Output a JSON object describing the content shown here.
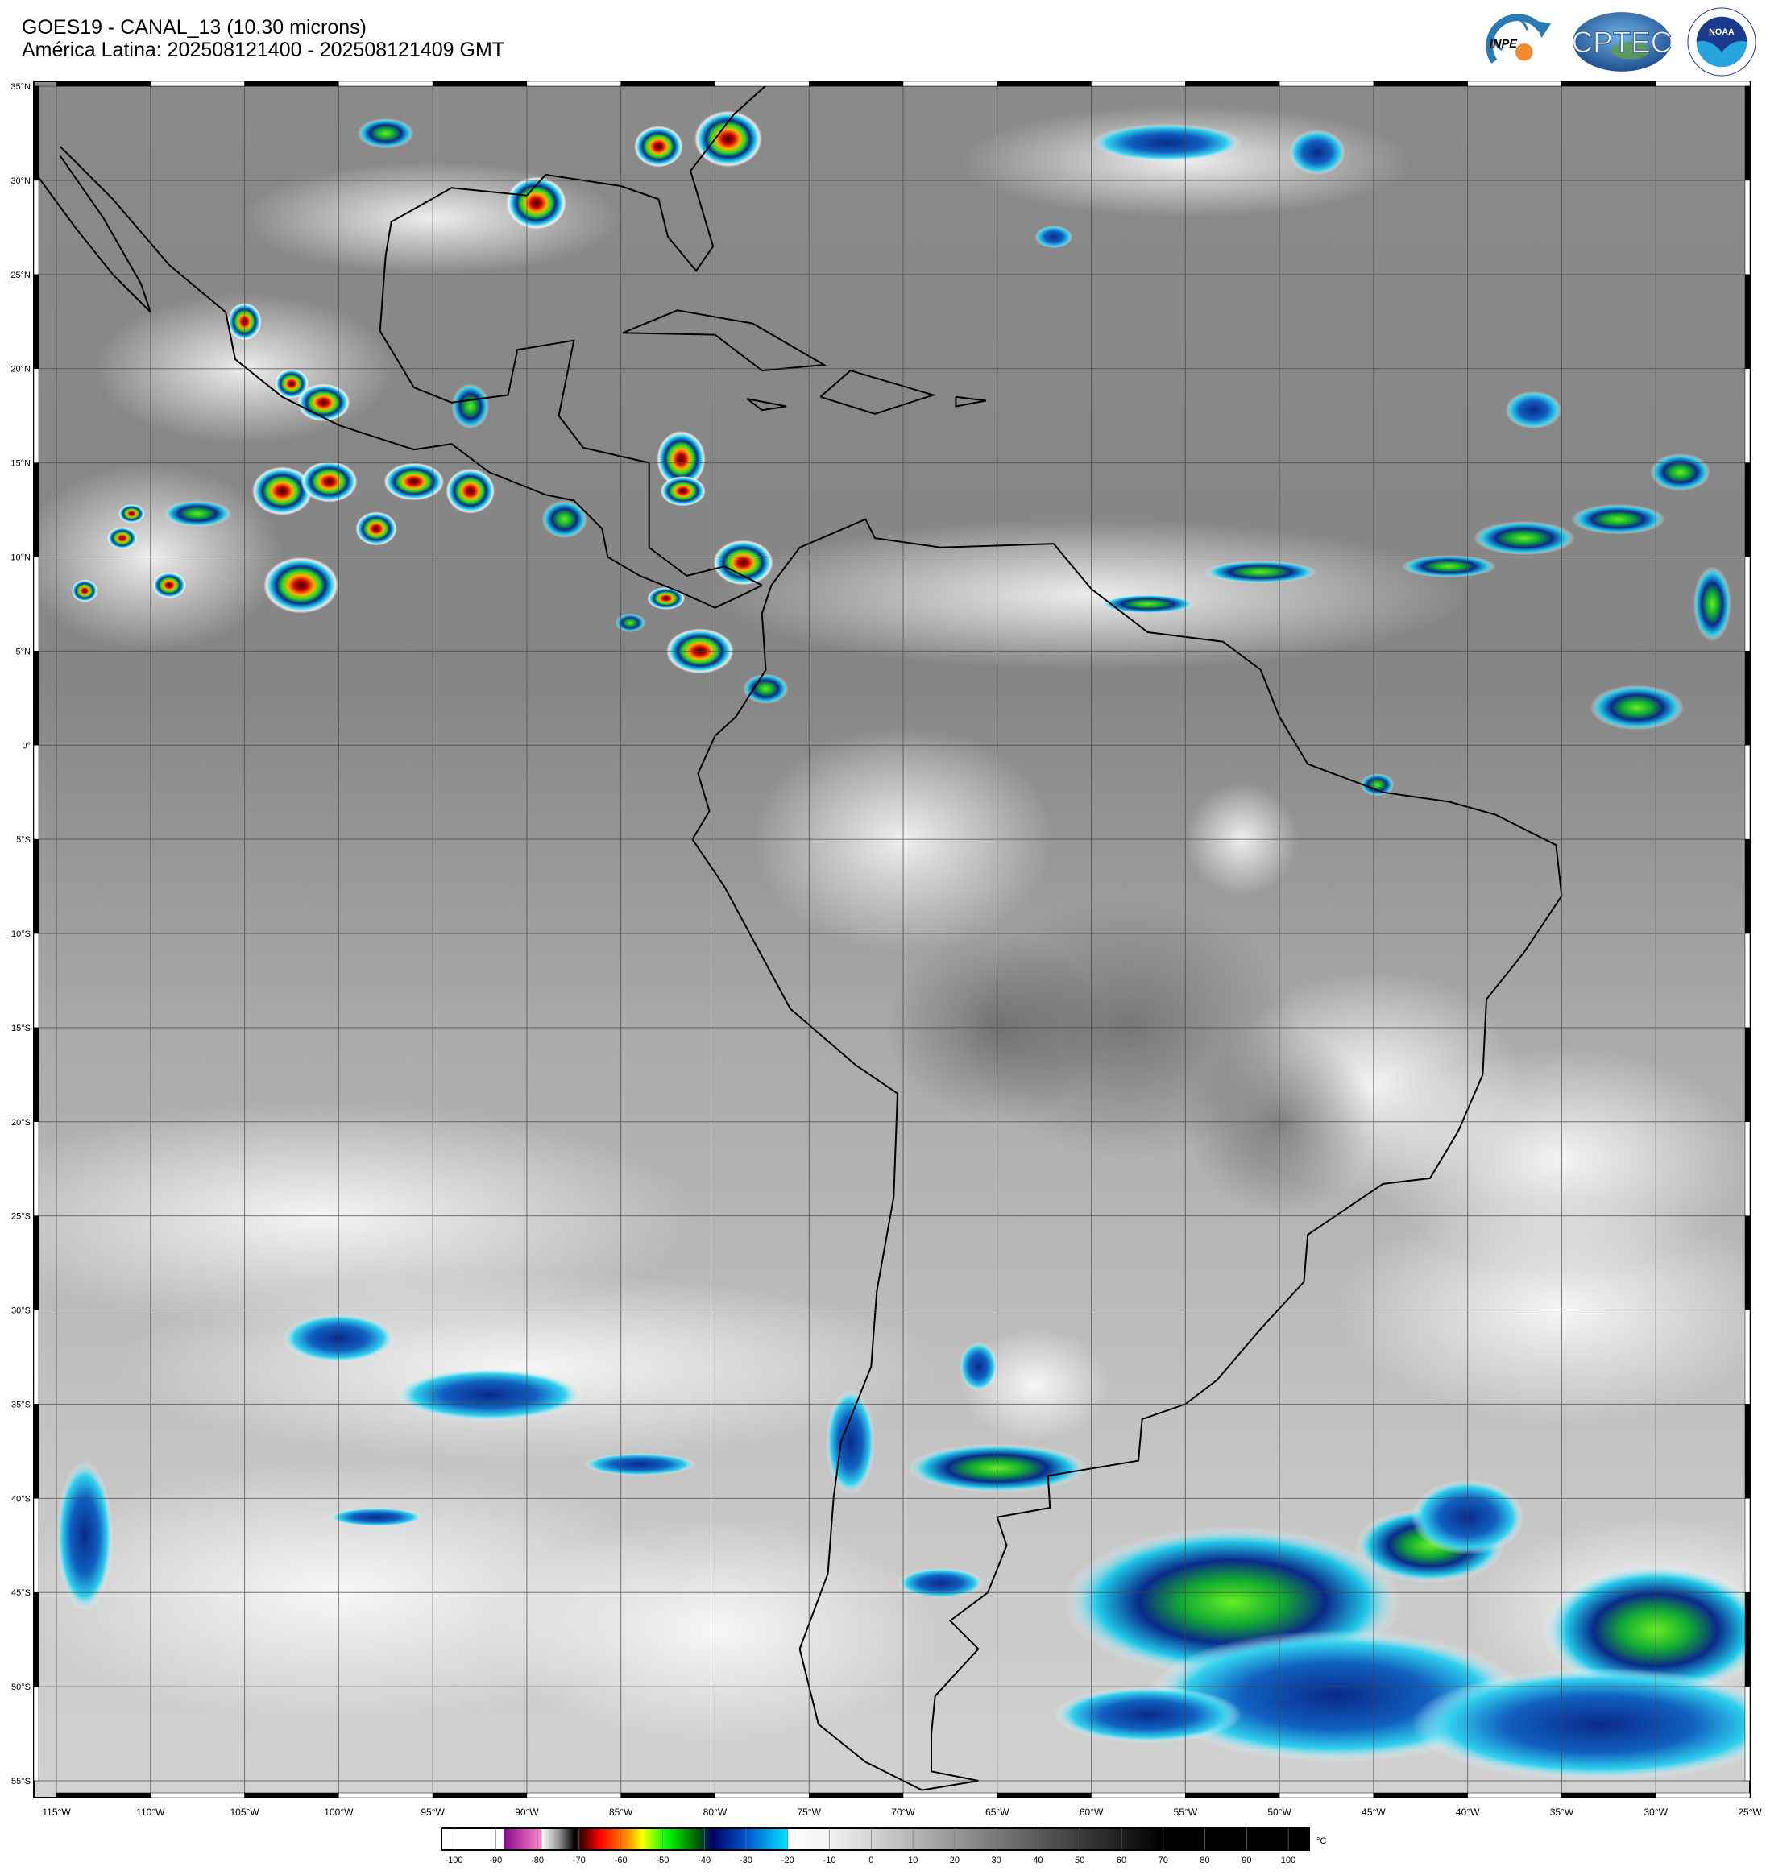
{
  "header": {
    "title": "GOES19 - CANAL_13 (10.30 microns)",
    "subtitle": "América Latina: 202508121400 - 202508121409 GMT"
  },
  "logos": [
    {
      "name": "INPE",
      "colors": [
        "#2a7bb3",
        "#f08a2c"
      ]
    },
    {
      "name": "CPTEC",
      "colors": [
        "#2f6fae",
        "#5da04a"
      ]
    },
    {
      "name": "NOAA",
      "colors": [
        "#1b3a8c",
        "#27a4dd"
      ]
    }
  ],
  "map": {
    "lon_range": [
      -116.2,
      -25
    ],
    "lat_range": [
      -55.9,
      35.26
    ],
    "grid": true,
    "lat_labels": [
      "35°N",
      "30°N",
      "25°N",
      "20°N",
      "15°N",
      "10°N",
      "5°N",
      "0°",
      "5°S",
      "10°S",
      "15°S",
      "20°S",
      "25°S",
      "30°S",
      "35°S",
      "40°S",
      "45°S",
      "50°S",
      "55°S"
    ],
    "lat_values": [
      35,
      30,
      25,
      20,
      15,
      10,
      5,
      0,
      -5,
      -10,
      -15,
      -20,
      -25,
      -30,
      -35,
      -40,
      -45,
      -50,
      -55
    ],
    "lon_labels": [
      "115°W",
      "110°W",
      "105°W",
      "100°W",
      "95°W",
      "90°W",
      "85°W",
      "80°W",
      "75°W",
      "70°W",
      "65°W",
      "60°W",
      "55°W",
      "50°W",
      "45°W",
      "40°W",
      "35°W",
      "30°W",
      "25°W"
    ],
    "lon_values": [
      -115,
      -110,
      -105,
      -100,
      -95,
      -90,
      -85,
      -80,
      -75,
      -70,
      -65,
      -60,
      -55,
      -50,
      -45,
      -40,
      -35,
      -30,
      -25
    ]
  },
  "colorbar": {
    "unit": "°C",
    "range": [
      -103,
      105
    ],
    "ticks": [
      "-100",
      "-90",
      "-80",
      "-70",
      "-60",
      "-50",
      "-40",
      "-30",
      "-20",
      "-10",
      "0",
      "10",
      "20",
      "30",
      "40",
      "50",
      "60",
      "70",
      "80",
      "90",
      "100"
    ],
    "tick_values": [
      -100,
      -90,
      -80,
      -70,
      -60,
      -50,
      -40,
      -30,
      -20,
      -10,
      0,
      10,
      20,
      30,
      40,
      50,
      60,
      70,
      80,
      90,
      100
    ],
    "stops": [
      [
        -103,
        "#ffffff"
      ],
      [
        -88,
        "#ffffff"
      ],
      [
        -88,
        "#8a0a8a"
      ],
      [
        -79,
        "#ff88cc"
      ],
      [
        -79,
        "#ffffff"
      ],
      [
        -75,
        "#999999"
      ],
      [
        -71,
        "#000000"
      ],
      [
        -65,
        "#ff0000"
      ],
      [
        -58,
        "#ff9900"
      ],
      [
        -55,
        "#ffff00"
      ],
      [
        -49,
        "#00ff00"
      ],
      [
        -42,
        "#006600"
      ],
      [
        -38,
        "#000066"
      ],
      [
        -30,
        "#0055cc"
      ],
      [
        -20,
        "#00e5ff"
      ],
      [
        -20,
        "#ffffff"
      ],
      [
        -10,
        "#f2f2f2"
      ],
      [
        70,
        "#000000"
      ],
      [
        105,
        "#000000"
      ]
    ]
  }
}
